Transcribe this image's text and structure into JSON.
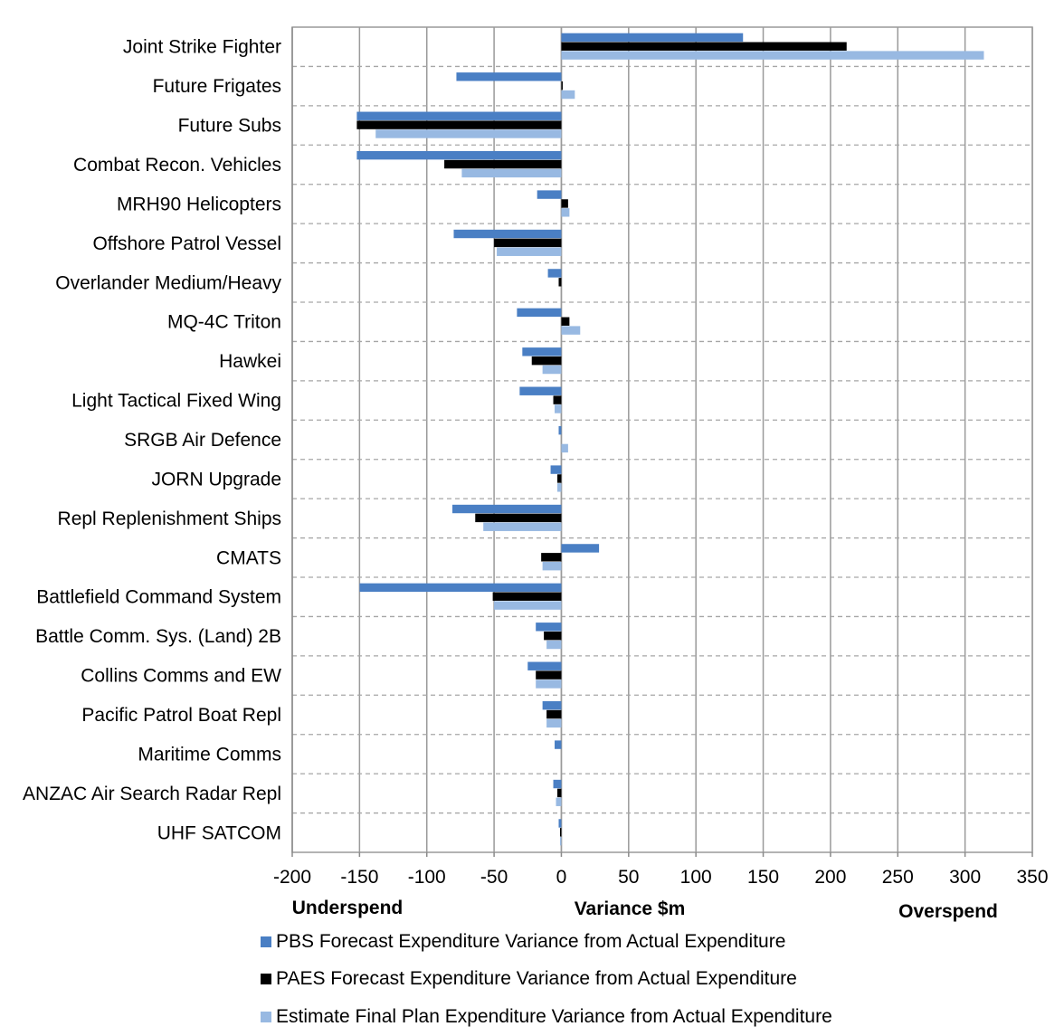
{
  "chart_data": {
    "type": "bar",
    "orientation": "horizontal",
    "categories": [
      "Joint Strike Fighter",
      "Future Frigates",
      "Future Subs",
      "Combat Recon. Vehicles",
      "MRH90 Helicopters",
      "Offshore Patrol Vessel",
      "Overlander Medium/Heavy",
      "MQ-4C Triton",
      "Hawkei",
      "Light Tactical Fixed Wing",
      "SRGB Air Defence",
      "JORN Upgrade",
      "Repl Replenishment Ships",
      "CMATS",
      "Battlefield Command System",
      "Battle Comm. Sys. (Land) 2B",
      "Collins Comms and EW",
      "Pacific Patrol Boat Repl",
      "Maritime Comms",
      "ANZAC Air Search Radar Repl",
      "UHF SATCOM"
    ],
    "series": [
      {
        "name": "PBS Forecast Expenditure Variance from Actual Expenditure",
        "color": "#4a7fc4",
        "values": [
          135,
          -78,
          -152,
          -152,
          -18,
          -80,
          -10,
          -33,
          -29,
          -31,
          -2,
          -8,
          -81,
          28,
          -150,
          -19,
          -25,
          -14,
          -5,
          -6,
          -2
        ]
      },
      {
        "name": "PAES Forecast Expenditure Variance from Actual Expenditure",
        "color": "#000000",
        "values": [
          212,
          1,
          -152,
          -87,
          5,
          -50,
          -2,
          6,
          -22,
          -6,
          0,
          -3,
          -64,
          -15,
          -51,
          -13,
          -19,
          -11,
          0,
          -3,
          -1
        ]
      },
      {
        "name": "Estimate Final Plan Expenditure Variance from Actual Expenditure",
        "color": "#98b9e2",
        "values": [
          314,
          10,
          -138,
          -74,
          6,
          -48,
          0,
          14,
          -14,
          -5,
          5,
          -3,
          -58,
          -14,
          -50,
          -11,
          -19,
          -11,
          0,
          -4,
          -1
        ]
      }
    ],
    "xlim": [
      -200,
      350
    ],
    "xticks": [
      "-200",
      "-150",
      "-100",
      "-50",
      "0",
      "50",
      "100",
      "150",
      "200",
      "250",
      "300",
      "350"
    ],
    "xlabel": "Variance $m",
    "left_annotation": "Underspend",
    "right_annotation": "Overspend",
    "grid": true,
    "legend_position": "bottom"
  }
}
